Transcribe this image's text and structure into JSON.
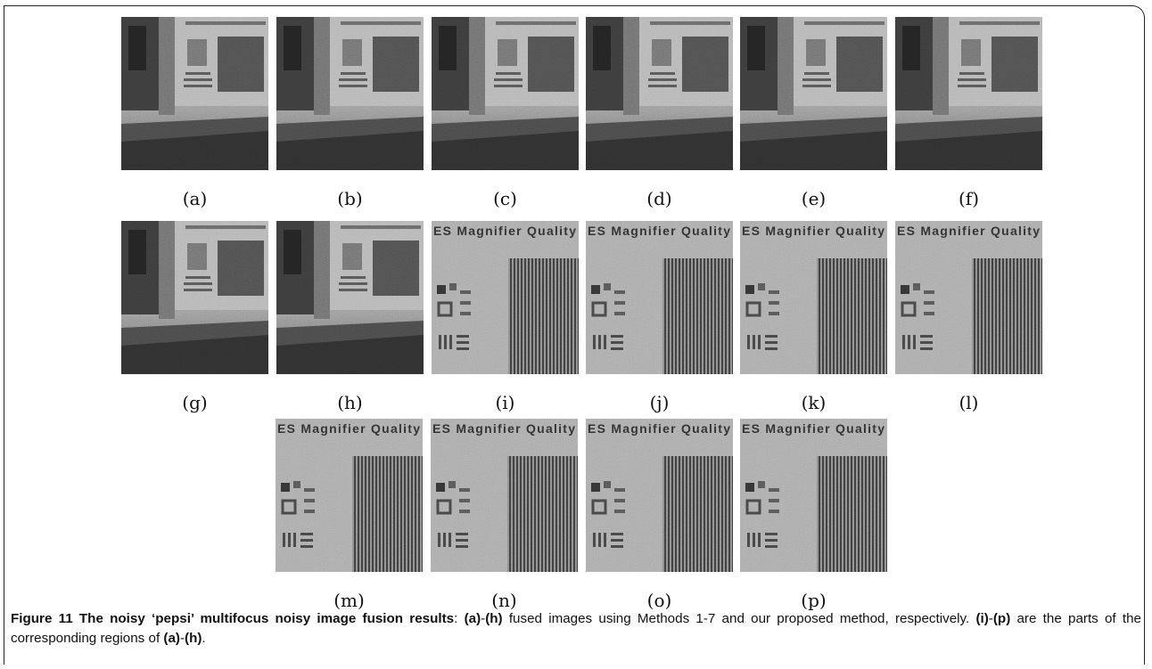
{
  "figure": {
    "fused_images": [
      "(a)",
      "(b)",
      "(c)",
      "(d)",
      "(e)",
      "(f)",
      "(g)",
      "(h)"
    ],
    "region_crops": [
      "(i)",
      "(j)",
      "(k)",
      "(l)",
      "(m)",
      "(n)",
      "(o)",
      "(p)"
    ],
    "crop_text": "ES Magnifier Quality"
  },
  "caption": {
    "segments": [
      {
        "text": "Figure 11 The noisy ‘pepsi’ multifocus noisy image fusion results",
        "bold": true
      },
      {
        "text": ": ",
        "bold": false
      },
      {
        "text": "(a)",
        "bold": true
      },
      {
        "text": "-",
        "bold": false
      },
      {
        "text": "(h)",
        "bold": true
      },
      {
        "text": " fused images using Methods 1-7 and our proposed method, respectively. ",
        "bold": false
      },
      {
        "text": "(i)",
        "bold": true
      },
      {
        "text": "-",
        "bold": false
      },
      {
        "text": "(p)",
        "bold": true
      },
      {
        "text": " are the parts of the corresponding regions of ",
        "bold": false
      },
      {
        "text": "(a)",
        "bold": true
      },
      {
        "text": "-",
        "bold": false
      },
      {
        "text": "(h)",
        "bold": true
      },
      {
        "text": ".",
        "bold": false
      }
    ]
  }
}
